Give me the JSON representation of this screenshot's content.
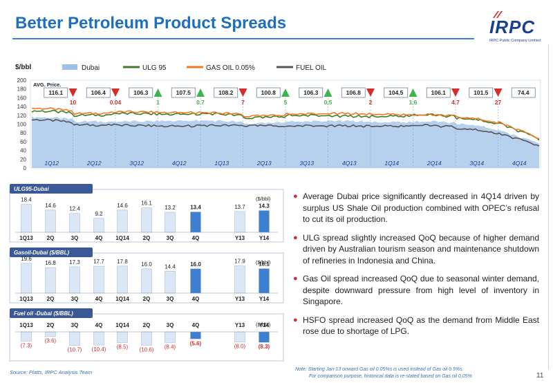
{
  "page": {
    "title": "Better Petroleum Product Spreads",
    "logo_name": "IRPC",
    "logo_subtitle": "IRPC Public Company Limited",
    "source": "Source: Platts, IRPC Analysis Team",
    "note_line1": "Note: Starting Jan-13 onward  Gas oil 0.05%s is used instead of Gas oil 0.5%s.",
    "note_line2": "For comparison purpose, historical data is re-stated based on Gas oil 0.05%",
    "page_number": "11",
    "colors": {
      "title": "#1f6fc1",
      "dubai": "#9fc0e8",
      "ulg95": "#3f7a2a",
      "gasoil": "#f07a1e",
      "fueloil": "#555555",
      "up": "#3fb34f",
      "down": "#d62c2c",
      "panel_header": "#3c5997",
      "bar": "#dbe7f5",
      "bar_highlight": "#3f7fd0"
    },
    "bullets": [
      "Average Dubai price significantly decreased in 4Q14 driven by surplus US Shale Oil production combined with OPEC’s refusal to cut its oil production.",
      "ULG spread slightly increased QoQ because of  higher demand driven by Australian tourism season and maintenance shutdown of refineries in Indonesia and China.",
      "Gas Oil spread increased QoQ due to seasonal winter demand, despite downward pressure from high level of inventory in Singapore.",
      "HSFO spread increased QoQ as the demand from Middle East rose due to shortage of LPG."
    ]
  },
  "chart_data": [
    {
      "type": "area",
      "ylabel": "$/bbl",
      "ylim": [
        0,
        200
      ],
      "yticks": [
        0,
        20,
        40,
        60,
        80,
        100,
        120,
        140,
        160,
        180,
        200
      ],
      "legend": [
        "Dubai",
        "ULG 95",
        "GAS OIL 0.05%",
        "FUEL OIL"
      ],
      "legend_placement": "top",
      "avg_label": "AVG. Price.",
      "quarters": [
        "1Q12",
        "2Q12",
        "3Q12",
        "4Q12",
        "1Q13",
        "2Q13",
        "3Q13",
        "4Q13",
        "1Q14",
        "2Q14",
        "3Q14",
        "4Q14"
      ],
      "avg_prices": [
        "116.1",
        "106.4",
        "106.3",
        "107.5",
        "108.2",
        "100.8",
        "106.3",
        "106.8",
        "104.5",
        "106.1",
        "101.5",
        "74.4"
      ],
      "changes": [
        {
          "label": "10",
          "dir": "down"
        },
        {
          "label": "0.04",
          "dir": "down"
        },
        {
          "label": "1",
          "dir": "up"
        },
        {
          "label": "0.7",
          "dir": "up"
        },
        {
          "label": "7",
          "dir": "down"
        },
        {
          "label": "5",
          "dir": "up"
        },
        {
          "label": "0.5",
          "dir": "up"
        },
        {
          "label": "2",
          "dir": "down"
        },
        {
          "label": "1.6",
          "dir": "up"
        },
        {
          "label": "4.7",
          "dir": "down"
        },
        {
          "label": "27",
          "dir": "down"
        }
      ],
      "series_quarterly": [
        {
          "name": "Dubai",
          "values": [
            116,
            106,
            106,
            107,
            108,
            101,
            106,
            107,
            104,
            106,
            101,
            74
          ]
        },
        {
          "name": "ULG 95",
          "values": [
            130,
            120,
            124,
            122,
            124,
            114,
            120,
            118,
            117,
            121,
            114,
            88
          ]
        },
        {
          "name": "GAS OIL 0.05%",
          "values": [
            136,
            124,
            128,
            126,
            126,
            118,
            123,
            124,
            122,
            121,
            116,
            90
          ]
        },
        {
          "name": "FUEL OIL",
          "values": [
            110,
            98,
            97,
            95,
            97,
            96,
            96,
            96,
            95,
            97,
            90,
            68
          ]
        }
      ]
    },
    {
      "type": "bar",
      "title": "ULG95-Dubai",
      "unit": "($/bbl)",
      "categories": [
        "1Q13",
        "2Q",
        "3Q",
        "4Q",
        "1Q14",
        "2Q",
        "3Q",
        "4Q",
        "Y13",
        "Y14"
      ],
      "values": [
        18.4,
        14.6,
        12.4,
        9.2,
        14.6,
        16.1,
        13.2,
        13.4,
        13.7,
        14.3
      ],
      "labels": [
        "18.4",
        "14.6",
        "12.4",
        "9.2",
        "14.6",
        "16.1",
        "13.2",
        "13.4",
        "13.7",
        "14.3"
      ],
      "highlight": [
        7,
        9
      ]
    },
    {
      "type": "bar",
      "title": "Gasoil-Dubai ($/BBL)",
      "unit": "($/bbl)",
      "categories": [
        "1Q13",
        "2Q",
        "3Q",
        "4Q",
        "1Q14",
        "2Q",
        "3Q",
        "4Q",
        "Y13",
        "Y14"
      ],
      "values": [
        19.6,
        16.8,
        17.3,
        17.7,
        17.8,
        16.0,
        14.4,
        16.0,
        17.9,
        16.1
      ],
      "labels": [
        "19.6",
        "16.8",
        "17.3",
        "17.7",
        "17.8",
        "16.0",
        "14.4",
        "16.0",
        "17.9",
        "16.1"
      ],
      "highlight": [
        7,
        9
      ]
    },
    {
      "type": "bar",
      "title": "Fuel oil -Dubai ($/BBL)",
      "unit": "($/bbl)",
      "categories": [
        "1Q13",
        "2Q",
        "3Q",
        "4Q",
        "1Q14",
        "2Q",
        "3Q",
        "4Q",
        "Y13",
        "Y14"
      ],
      "values": [
        -7.3,
        -3.6,
        -10.7,
        -10.4,
        -8.5,
        -10.6,
        -8.4,
        -5.6,
        -8.0,
        -8.3
      ],
      "labels": [
        "(7.3)",
        "(3.6)",
        "(10.7)",
        "(10.4)",
        "(8.5)",
        "(10.6)",
        "(8.4)",
        "(5.6)",
        "(8.0)",
        "(8.3)"
      ],
      "highlight": [
        7,
        9
      ]
    }
  ]
}
